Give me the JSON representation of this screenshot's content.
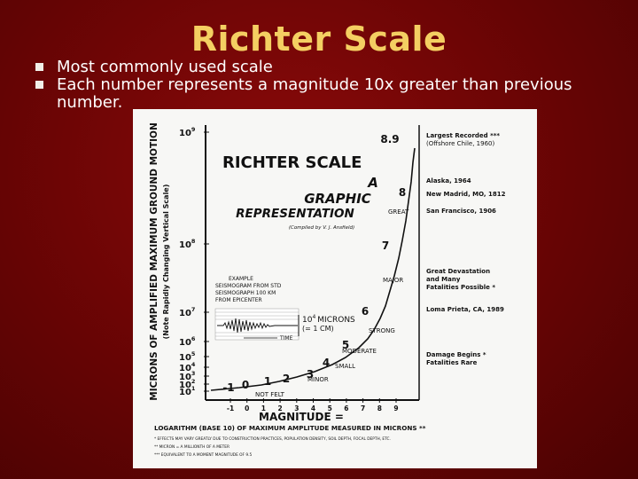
{
  "slide": {
    "title": "Richter Scale",
    "bullets": [
      "Most commonly used scale",
      "Each number represents a magnitude 10x greater than previous number."
    ]
  },
  "figure": {
    "y_axis_title": "MICRONS OF AMPLIFIED MAXIMUM GROUND MOTION",
    "y_axis_subtitle": "(Note Rapidly Changing Vertical Scale)",
    "heading_1": "RICHTER SCALE",
    "heading_2": "A",
    "heading_3": "GRAPHIC",
    "heading_4": "REPRESENTATION",
    "compiled_by": "(Compiled by V. J. Ansfield)",
    "example_lines": [
      "EXAMPLE",
      "SEISMOGRAM FROM STD",
      "SEISMOGRAPH 100 KM",
      "FROM EPICENTER"
    ],
    "microns_label": "10",
    "microns_sup": "4",
    "microns_word": "MICRONS",
    "microns_cm": "(= 1 CM)",
    "time_label": "TIME",
    "y_ticks": [
      {
        "base": "10",
        "exp": "9"
      },
      {
        "base": "10",
        "exp": "8"
      },
      {
        "base": "10",
        "exp": "7"
      },
      {
        "base": "10",
        "exp": "6"
      },
      {
        "base": "10",
        "exp": "5"
      },
      {
        "base": "10",
        "exp": "4"
      },
      {
        "base": "10",
        "exp": "3"
      },
      {
        "base": "10",
        "exp": "2"
      },
      {
        "base": "10",
        "exp": "1"
      }
    ],
    "x_ticks": [
      "-1",
      "0",
      "1",
      "2",
      "3",
      "4",
      "5",
      "6",
      "7",
      "8",
      "9"
    ],
    "curve_labels": [
      "-1",
      "0",
      "1",
      "2",
      "3",
      "4",
      "5",
      "6",
      "7",
      "8",
      "8.9"
    ],
    "categories": [
      "GREAT",
      "MAJOR",
      "STRONG",
      "MODERATE",
      "SMALL",
      "MINOR",
      "NOT FELT"
    ],
    "annotations": [
      [
        "Largest Recorded ***",
        "(Offshore Chile, 1960)"
      ],
      [
        "Alaska, 1964"
      ],
      [
        "New Madrid, MO, 1812"
      ],
      [
        "San Francisco, 1906"
      ],
      [
        "Great Devastation",
        "and Many",
        "Fatalities Possible *"
      ],
      [
        "Loma Prieta, CA, 1989"
      ],
      [
        "Damage Begins *",
        "Fatalities Rare"
      ]
    ],
    "x_axis_title": "MAGNITUDE =",
    "x_axis_subtitle": "LOGARITHM (BASE 10) OF MAXIMUM AMPLITUDE MEASURED IN MICRONS **",
    "footnotes": [
      "* EFFECTS MAY VARY GREATLY DUE TO CONSTRUCTION PRACTICES, POPULATION DENSITY, SOIL DEPTH, FOCAL DEPTH, ETC.",
      "** MICRON = A MILLIONTH OF A METER",
      "*** EQUIVALENT TO A MOMENT MAGNITUDE OF 9.5"
    ]
  }
}
